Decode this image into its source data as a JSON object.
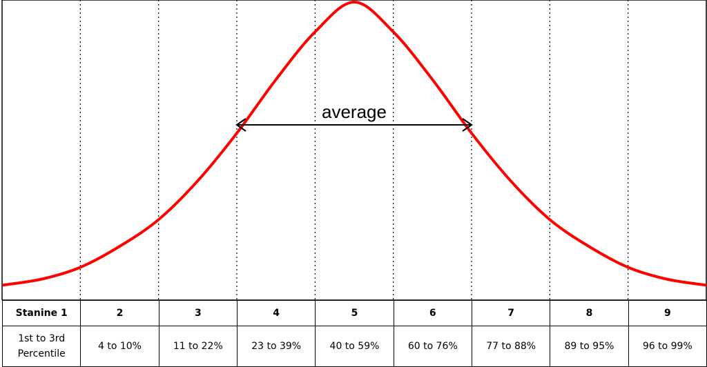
{
  "chart_data": {
    "type": "area",
    "description_label": "average",
    "curve": {
      "x": [
        -4.5,
        -4,
        -3.5,
        -3,
        -2.5,
        -2,
        -1.5,
        -1,
        -0.5,
        0,
        0.5,
        1,
        1.5,
        2,
        2.5,
        3,
        3.5,
        4,
        4.5
      ],
      "y": [
        0.05,
        0.07,
        0.11,
        0.18,
        0.27,
        0.4,
        0.56,
        0.74,
        0.9,
        1.0,
        0.9,
        0.74,
        0.56,
        0.4,
        0.27,
        0.18,
        0.11,
        0.07,
        0.05
      ]
    },
    "xlim": [
      -4.5,
      4.5
    ],
    "ylim": [
      0,
      1.0
    ],
    "boundaries": [
      -3.5,
      -2.5,
      -1.5,
      -0.5,
      0.5,
      1.5,
      2.5,
      3.5
    ],
    "average_range": [
      -1.5,
      1.5
    ],
    "curve_color": "#ff0000",
    "gridline_style": "dotted"
  },
  "table": {
    "stanines": [
      "Stanine 1",
      "2",
      "3",
      "4",
      "5",
      "6",
      "7",
      "8",
      "9"
    ],
    "percentiles": [
      "1st to 3rd Percentile",
      "4 to 10%",
      "11 to 22%",
      "23 to 39%",
      "40 to 59%",
      "60 to 76%",
      "77 to 88%",
      "89 to 95%",
      "96 to 99%"
    ]
  }
}
